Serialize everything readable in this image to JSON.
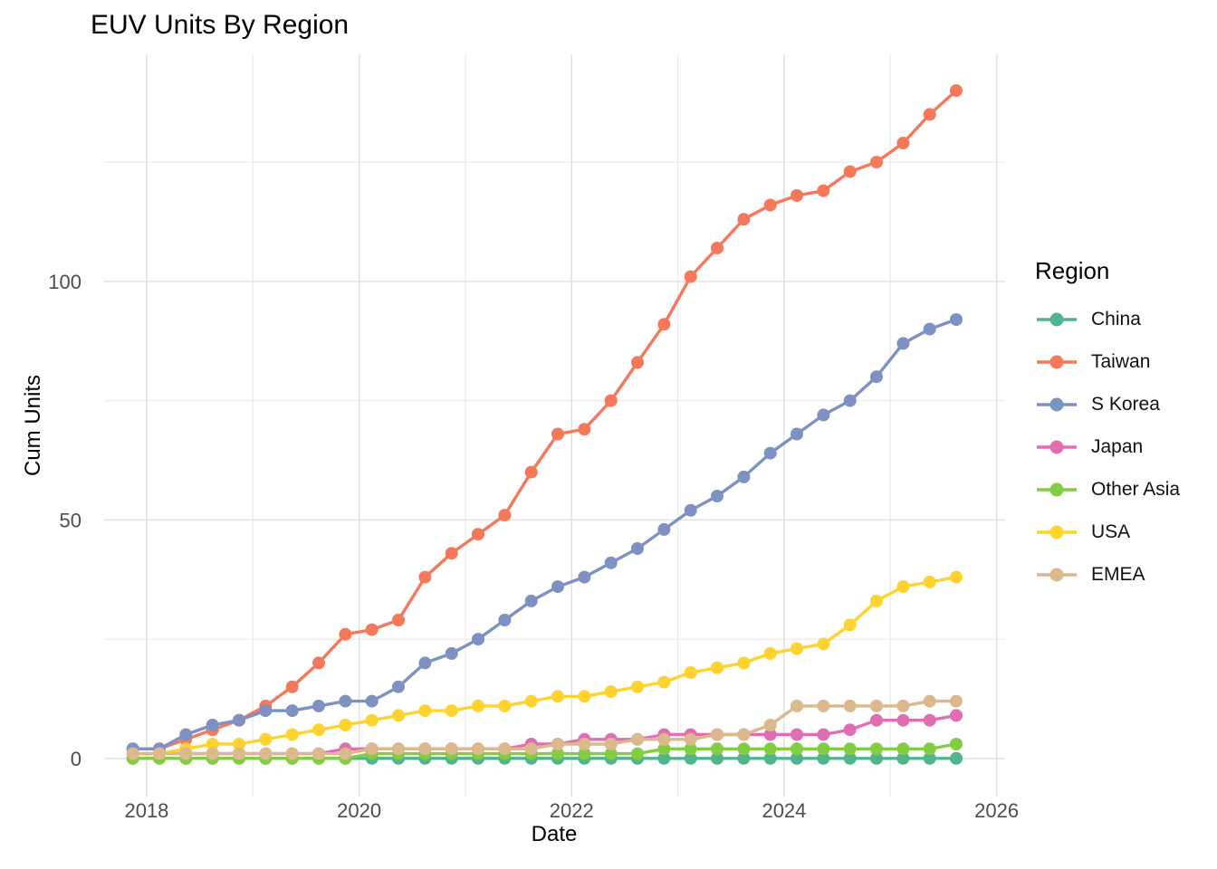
{
  "chart_data": {
    "type": "line",
    "title": "EUV Units By Region",
    "xlabel": "Date",
    "ylabel": "Cum Units",
    "legend_title": "Region",
    "legend_position": "right",
    "grid": true,
    "background_color": "#FFFFFF",
    "grid_color_major": "#E2E2E2",
    "grid_color_minor": "#ECECEC",
    "tick_label_color": "#4D4D4D",
    "xlim": [
      2017.6,
      2026.08
    ],
    "ylim": [
      -8,
      147.6
    ],
    "x_ticks": [
      2018,
      2020,
      2022,
      2024,
      2026
    ],
    "x_minor_ticks": [
      2019,
      2021,
      2023,
      2025
    ],
    "y_ticks": [
      0,
      50,
      100
    ],
    "y_minor_ticks": [
      25,
      75,
      125
    ],
    "x": [
      2017.87,
      2018.12,
      2018.37,
      2018.62,
      2018.87,
      2019.12,
      2019.37,
      2019.62,
      2019.87,
      2020.12,
      2020.37,
      2020.62,
      2020.87,
      2021.12,
      2021.37,
      2021.62,
      2021.87,
      2022.12,
      2022.37,
      2022.62,
      2022.87,
      2023.12,
      2023.37,
      2023.62,
      2023.87,
      2024.12,
      2024.37,
      2024.62,
      2024.87,
      2025.12,
      2025.37,
      2025.62
    ],
    "series": [
      {
        "name": "China",
        "color": "#50B48C",
        "values": [
          0,
          0,
          0,
          0,
          0,
          0,
          0,
          0,
          0,
          0,
          0,
          0,
          0,
          0,
          0,
          0,
          0,
          0,
          0,
          0,
          0,
          0,
          0,
          0,
          0,
          0,
          0,
          0,
          0,
          0,
          0,
          0
        ]
      },
      {
        "name": "Taiwan",
        "color": "#F5785A",
        "values": [
          2,
          2,
          4,
          6,
          8,
          11,
          15,
          20,
          26,
          27,
          29,
          38,
          43,
          47,
          51,
          60,
          68,
          69,
          75,
          83,
          91,
          101,
          107,
          113,
          116,
          118,
          119,
          123,
          125,
          129,
          135,
          140
        ]
      },
      {
        "name": "S Korea",
        "color": "#7D91C3",
        "values": [
          2,
          2,
          5,
          7,
          8,
          10,
          10,
          11,
          12,
          12,
          15,
          20,
          22,
          25,
          29,
          33,
          36,
          38,
          41,
          44,
          48,
          52,
          55,
          59,
          64,
          68,
          72,
          75,
          80,
          87,
          90,
          92
        ]
      },
      {
        "name": "Japan",
        "color": "#E16EB4",
        "values": [
          1,
          1,
          1,
          1,
          1,
          1,
          1,
          1,
          2,
          2,
          2,
          2,
          2,
          2,
          2,
          3,
          3,
          4,
          4,
          4,
          5,
          5,
          5,
          5,
          5,
          5,
          5,
          6,
          8,
          8,
          8,
          9
        ]
      },
      {
        "name": "Other Asia",
        "color": "#82CD41",
        "values": [
          0,
          0,
          0,
          0,
          0,
          0,
          0,
          0,
          0,
          1,
          1,
          1,
          1,
          1,
          1,
          1,
          1,
          1,
          1,
          1,
          2,
          2,
          2,
          2,
          2,
          2,
          2,
          2,
          2,
          2,
          2,
          3
        ]
      },
      {
        "name": "USA",
        "color": "#FFD32F",
        "values": [
          1,
          1,
          2,
          3,
          3,
          4,
          5,
          6,
          7,
          8,
          9,
          10,
          10,
          11,
          11,
          12,
          13,
          13,
          14,
          15,
          16,
          18,
          19,
          20,
          22,
          23,
          24,
          28,
          33,
          36,
          37,
          38
        ]
      },
      {
        "name": "EMEA",
        "color": "#DCB98C",
        "values": [
          1,
          1,
          1,
          1,
          1,
          1,
          1,
          1,
          1,
          2,
          2,
          2,
          2,
          2,
          2,
          2,
          3,
          3,
          3,
          4,
          4,
          4,
          5,
          5,
          7,
          11,
          11,
          11,
          11,
          11,
          12,
          12
        ]
      }
    ]
  }
}
